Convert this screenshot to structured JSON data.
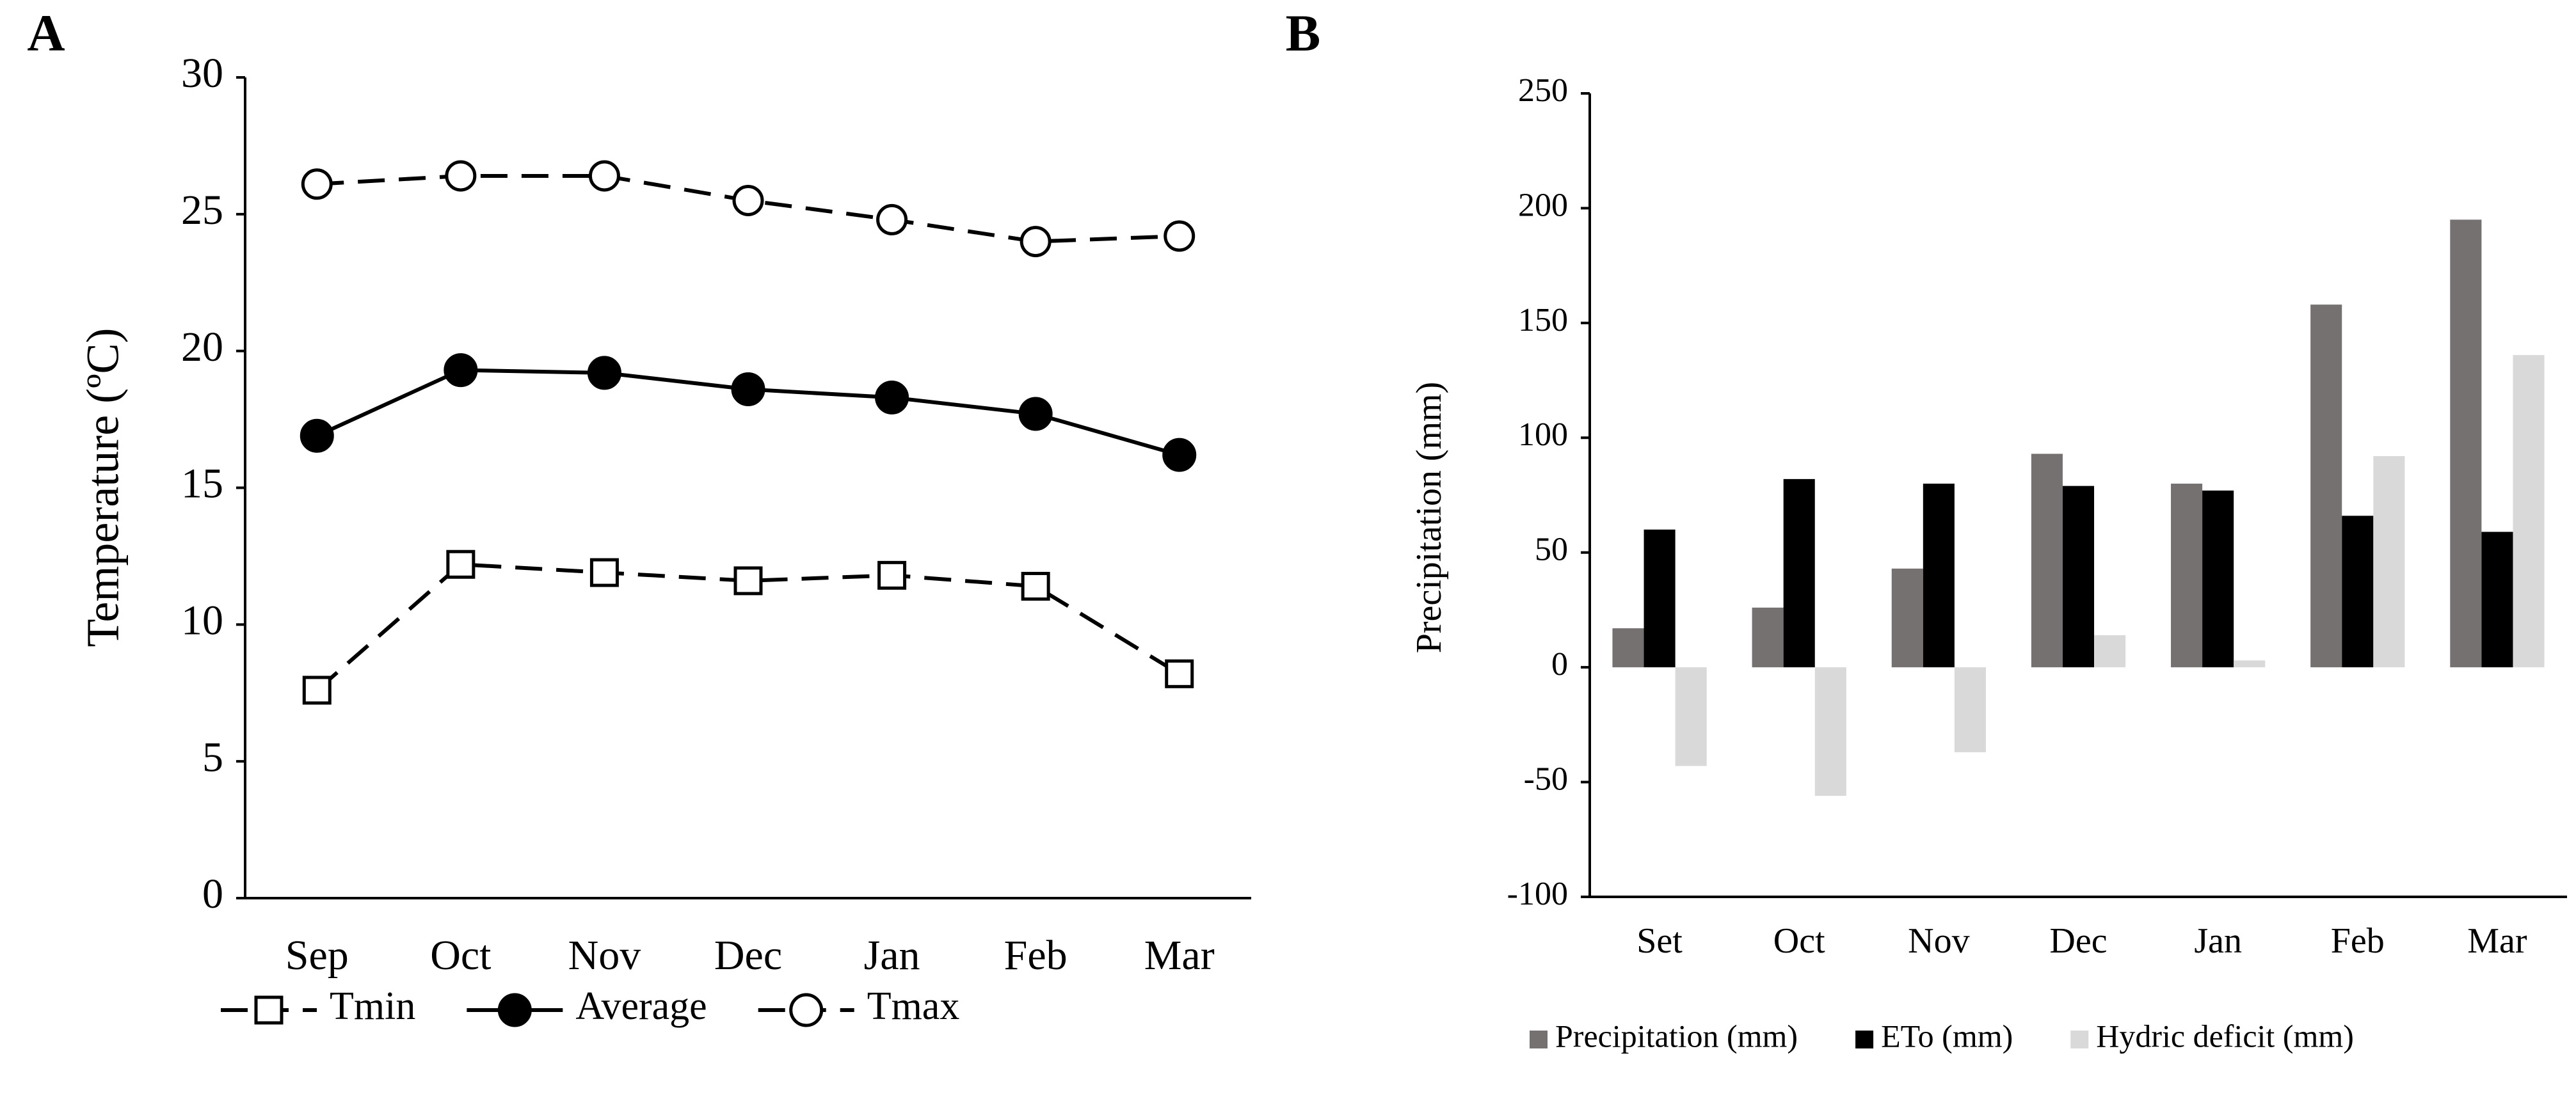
{
  "chart_data": [
    {
      "type": "line",
      "panel": "A",
      "y_label": "Temperature (ºC)",
      "categories": [
        "Sep",
        "Oct",
        "Nov",
        "Dec",
        "Jan",
        "Feb",
        "Mar"
      ],
      "ylim": [
        0,
        30
      ],
      "yticks": [
        0,
        5,
        10,
        15,
        20,
        25,
        30
      ],
      "grid": false,
      "series": [
        {
          "name": "Tmin",
          "color": "#000000",
          "marker": "square",
          "filled": false,
          "dashed": true,
          "values": [
            7.6,
            12.2,
            11.9,
            11.6,
            11.8,
            11.4,
            8.2
          ]
        },
        {
          "name": "Average",
          "color": "#000000",
          "marker": "circle",
          "filled": true,
          "dashed": false,
          "values": [
            16.9,
            19.3,
            19.2,
            18.6,
            18.3,
            17.7,
            16.2
          ]
        },
        {
          "name": "Tmax",
          "color": "#000000",
          "marker": "circle",
          "filled": false,
          "dashed": true,
          "values": [
            26.1,
            26.4,
            26.4,
            25.5,
            24.8,
            24.0,
            24.2
          ]
        }
      ]
    },
    {
      "type": "bar",
      "panel": "B",
      "y_label": "Precipitation (mm)",
      "categories": [
        "Set",
        "Oct",
        "Nov",
        "Dec",
        "Jan",
        "Feb",
        "Mar"
      ],
      "ylim": [
        -100,
        250
      ],
      "yticks": [
        -100,
        -50,
        0,
        50,
        100,
        150,
        200,
        250
      ],
      "grid": false,
      "series": [
        {
          "name": "Precipitation (mm)",
          "color": "#767171",
          "values": [
            17,
            26,
            43,
            93,
            80,
            158,
            195
          ]
        },
        {
          "name": "ETo  (mm)",
          "color": "#000000",
          "values": [
            60,
            82,
            80,
            79,
            77,
            66,
            59
          ]
        },
        {
          "name": "Hydric deficit (mm)",
          "color": "#d9d9d9",
          "values": [
            -43,
            -56,
            -37,
            14,
            3,
            92,
            136
          ]
        }
      ]
    }
  ]
}
